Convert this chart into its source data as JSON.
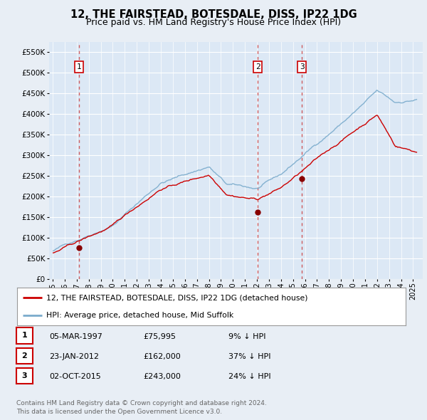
{
  "title": "12, THE FAIRSTEAD, BOTESDALE, DISS, IP22 1DG",
  "subtitle": "Price paid vs. HM Land Registry's House Price Index (HPI)",
  "title_fontsize": 10.5,
  "subtitle_fontsize": 9,
  "background_color": "#e8eef5",
  "plot_bg_color": "#dce8f5",
  "grid_color": "#ffffff",
  "ylim": [
    0,
    575000
  ],
  "yticks": [
    0,
    50000,
    100000,
    150000,
    200000,
    250000,
    300000,
    350000,
    400000,
    450000,
    500000,
    550000
  ],
  "ytick_labels": [
    "£0",
    "£50K",
    "£100K",
    "£150K",
    "£200K",
    "£250K",
    "£300K",
    "£350K",
    "£400K",
    "£450K",
    "£500K",
    "£550K"
  ],
  "xlim_start": 1994.7,
  "xlim_end": 2025.8,
  "sale_dates": [
    1997.17,
    2012.07,
    2015.75
  ],
  "sale_prices": [
    75995,
    162000,
    243000
  ],
  "sale_labels": [
    "1",
    "2",
    "3"
  ],
  "red_line_color": "#cc0000",
  "blue_line_color": "#7aabcc",
  "sale_dot_color": "#880000",
  "vline_color": "#cc4444",
  "legend_entries": [
    "12, THE FAIRSTEAD, BOTESDALE, DISS, IP22 1DG (detached house)",
    "HPI: Average price, detached house, Mid Suffolk"
  ],
  "table_rows": [
    [
      "1",
      "05-MAR-1997",
      "£75,995",
      "9% ↓ HPI"
    ],
    [
      "2",
      "23-JAN-2012",
      "£162,000",
      "37% ↓ HPI"
    ],
    [
      "3",
      "02-OCT-2015",
      "£243,000",
      "24% ↓ HPI"
    ]
  ],
  "footnote": "Contains HM Land Registry data © Crown copyright and database right 2024.\nThis data is licensed under the Open Government Licence v3.0."
}
